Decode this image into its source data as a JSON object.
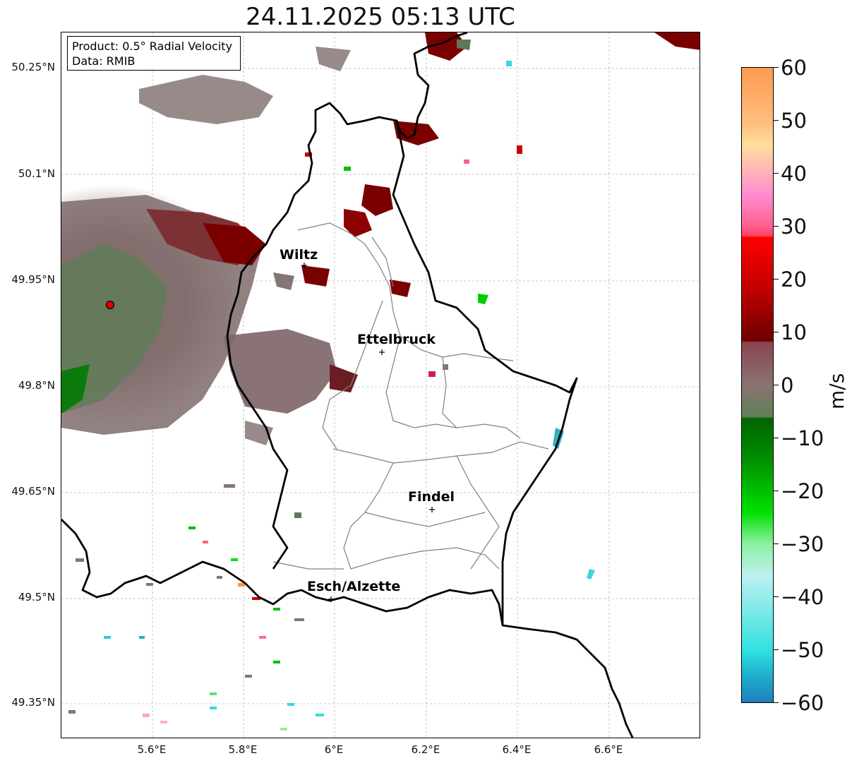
{
  "title": "24.11.2025 05:13 UTC",
  "info": {
    "product": "Product: 0.5° Radial Velocity",
    "data": "Data: RMIB"
  },
  "axes": {
    "y_ticks": [
      "50.25°N",
      "50.1°N",
      "49.95°N",
      "49.8°N",
      "49.65°N",
      "49.5°N",
      "49.35°N"
    ],
    "x_ticks": [
      "5.6°E",
      "5.8°E",
      "6°E",
      "6.2°E",
      "6.4°E",
      "6.6°E"
    ]
  },
  "cities": [
    {
      "name": "Wiltz"
    },
    {
      "name": "Ettelbruck"
    },
    {
      "name": "Findel"
    },
    {
      "name": "Esch/Alzette"
    }
  ],
  "colorbar": {
    "unit": "m/s",
    "ticks": [
      "60",
      "50",
      "40",
      "30",
      "20",
      "10",
      "0",
      "−10",
      "−20",
      "−30",
      "−40",
      "−50",
      "−60"
    ],
    "range": [
      -60,
      60
    ]
  },
  "colors": {
    "border": "#000000",
    "canton_border": "#808080",
    "gridline": "#b0b0b0",
    "radar_site": "#e00000",
    "receding_strong": "#7a0000",
    "near_zero": "#8a7676",
    "approaching": "#00a000"
  }
}
